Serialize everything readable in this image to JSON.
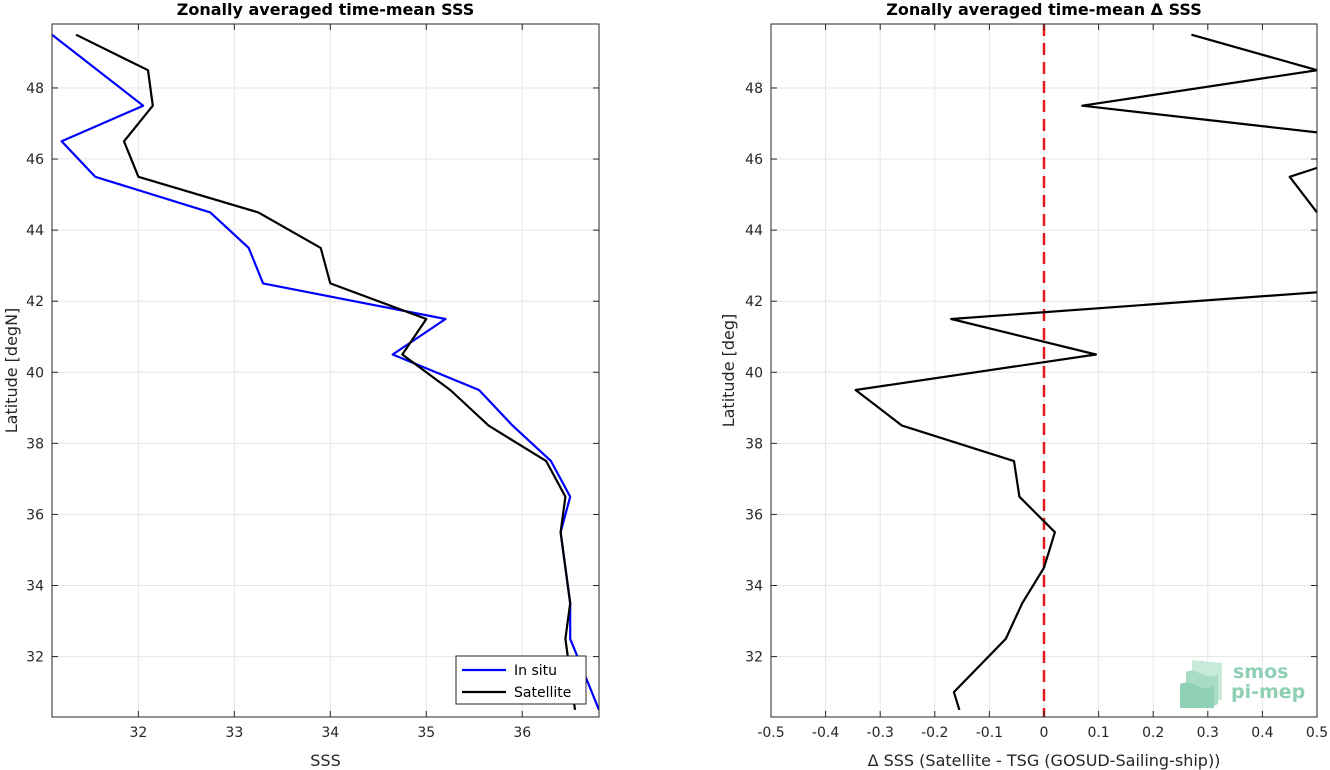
{
  "chart_data": [
    {
      "type": "line",
      "title": "Zonally averaged time-mean SSS",
      "xlabel": "SSS",
      "ylabel": "Latitude [degN]",
      "xlim": [
        31.1,
        36.8
      ],
      "ylim": [
        30.3,
        49.8
      ],
      "xticks": [
        32,
        33,
        34,
        35,
        36
      ],
      "yticks": [
        32,
        34,
        36,
        38,
        40,
        42,
        44,
        46,
        48
      ],
      "grid": true,
      "legend": "bottom-right",
      "series": [
        {
          "name": "In situ",
          "color": "#0000ff",
          "points": [
            [
              31.1,
              49.5
            ],
            [
              32.05,
              47.5
            ],
            [
              31.2,
              46.5
            ],
            [
              31.55,
              45.5
            ],
            [
              32.75,
              44.5
            ],
            [
              33.15,
              43.5
            ],
            [
              33.3,
              42.5
            ],
            [
              35.2,
              41.5
            ],
            [
              34.65,
              40.5
            ],
            [
              35.55,
              39.5
            ],
            [
              35.9,
              38.5
            ],
            [
              36.3,
              37.5
            ],
            [
              36.5,
              36.5
            ],
            [
              36.4,
              35.5
            ],
            [
              36.45,
              34.5
            ],
            [
              36.5,
              33.5
            ],
            [
              36.5,
              32.5
            ],
            [
              36.8,
              30.5
            ]
          ]
        },
        {
          "name": "Satellite",
          "color": "#000000",
          "points": [
            [
              31.35,
              49.5
            ],
            [
              32.1,
              48.5
            ],
            [
              32.15,
              47.5
            ],
            [
              31.85,
              46.5
            ],
            [
              32.0,
              45.5
            ],
            [
              33.25,
              44.5
            ],
            [
              33.9,
              43.5
            ],
            [
              34.0,
              42.5
            ],
            [
              35.0,
              41.5
            ],
            [
              34.75,
              40.5
            ],
            [
              35.25,
              39.5
            ],
            [
              35.65,
              38.5
            ],
            [
              36.25,
              37.5
            ],
            [
              36.45,
              36.5
            ],
            [
              36.4,
              35.5
            ],
            [
              36.45,
              34.5
            ],
            [
              36.5,
              33.5
            ],
            [
              36.45,
              32.5
            ],
            [
              36.55,
              30.5
            ]
          ]
        }
      ]
    },
    {
      "type": "line",
      "title": "Zonally averaged time-mean Δ SSS",
      "xlabel": "Δ SSS (Satellite - TSG (GOSUD-Sailing-ship))",
      "ylabel": "Latitude [deg]",
      "xlim": [
        -0.5,
        0.5
      ],
      "ylim": [
        30.3,
        49.8
      ],
      "xticks": [
        -0.5,
        -0.4,
        -0.3,
        -0.2,
        -0.1,
        0,
        0.1,
        0.2,
        0.3,
        0.4,
        0.5
      ],
      "xticklabels": [
        "-0.5",
        "-0.4",
        "-0.3",
        "-0.2",
        "-0.1",
        "0",
        "0.1",
        "0.2",
        "0.3",
        "0.4",
        "0.5"
      ],
      "yticks": [
        32,
        34,
        36,
        38,
        40,
        42,
        44,
        46,
        48
      ],
      "grid": true,
      "reference_line": {
        "x": 0,
        "color": "#e31a1c",
        "style": "dashed"
      },
      "series": [
        {
          "color": "#000000",
          "points": [
            [
              0.27,
              49.5
            ],
            [
              0.5,
              48.5
            ],
            [
              0.07,
              47.5
            ],
            [
              0.5,
              46.75
            ],
            [
              null,
              null
            ],
            [
              0.5,
              45.75
            ],
            [
              0.45,
              45.5
            ],
            [
              0.5,
              44.5
            ],
            [
              null,
              null
            ],
            [
              0.5,
              42.25
            ],
            [
              -0.17,
              41.5
            ],
            [
              0.095,
              40.5
            ],
            [
              -0.345,
              39.5
            ],
            [
              -0.26,
              38.5
            ],
            [
              -0.055,
              37.5
            ],
            [
              -0.045,
              36.5
            ],
            [
              0.02,
              35.5
            ],
            [
              0.0,
              34.5
            ],
            [
              -0.04,
              33.5
            ],
            [
              -0.07,
              32.5
            ],
            [
              -0.165,
              31.0
            ],
            [
              -0.155,
              30.5
            ]
          ]
        }
      ]
    }
  ],
  "logo": {
    "line1": "smos",
    "line2": "pi-mep"
  }
}
